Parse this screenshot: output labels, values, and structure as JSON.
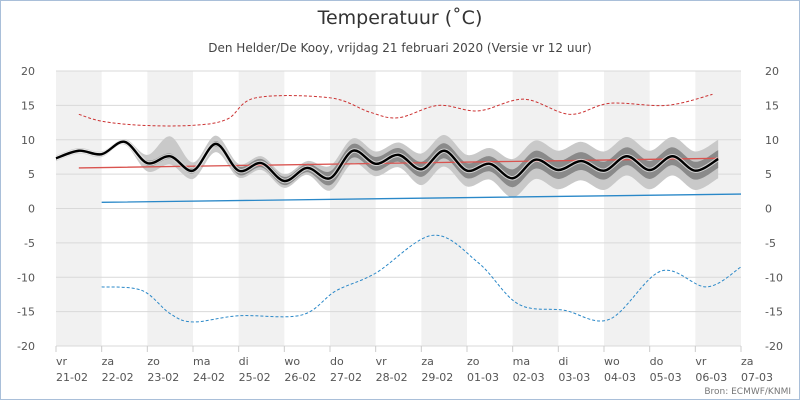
{
  "chart_data": {
    "type": "line",
    "title": "Temperatuur (˚C)",
    "subtitle": "Den Helder/De Kooy, vrijdag 21 februari 2020 (Versie vr 12 uur)",
    "source": "Bron: ECMWF/KNMI",
    "ylim": [
      -20,
      20
    ],
    "yticks": [
      20,
      15,
      10,
      5,
      0,
      -5,
      -10,
      -15,
      -20
    ],
    "xlim": [
      "2020-02-21T00:00",
      "2020-03-07T00:00"
    ],
    "xticks": [
      {
        "day": "vr",
        "date": "21-02"
      },
      {
        "day": "za",
        "date": "22-02"
      },
      {
        "day": "zo",
        "date": "23-02"
      },
      {
        "day": "ma",
        "date": "24-02"
      },
      {
        "day": "di",
        "date": "25-02"
      },
      {
        "day": "wo",
        "date": "26-02"
      },
      {
        "day": "do",
        "date": "27-02"
      },
      {
        "day": "vr",
        "date": "28-02"
      },
      {
        "day": "za",
        "date": "29-02"
      },
      {
        "day": "zo",
        "date": "01-03"
      },
      {
        "day": "ma",
        "date": "02-03"
      },
      {
        "day": "di",
        "date": "03-03"
      },
      {
        "day": "wo",
        "date": "04-03"
      },
      {
        "day": "do",
        "date": "05-03"
      },
      {
        "day": "vr",
        "date": "06-03"
      },
      {
        "day": "za",
        "date": "07-03"
      }
    ],
    "grid": true,
    "colors": {
      "mean": "#000000",
      "inner_band": "#8a8a8a",
      "outer_band": "#c9c9c9",
      "normal_max": "#d9534f",
      "normal_min": "#2a88c8",
      "record_max": "#cc3333",
      "record_min": "#2a88c8",
      "day_shade": "#f1f1f1",
      "gridline": "#d9d9d9"
    },
    "ensemble_columns": [
      "time",
      "p_low",
      "q_low",
      "mean",
      "q_high",
      "p_high"
    ],
    "ensemble": [
      [
        "2020-02-21T00",
        6.9,
        7.1,
        7.3,
        7.5,
        7.7
      ],
      [
        "2020-02-21T12",
        8.0,
        8.2,
        8.4,
        8.6,
        8.8
      ],
      [
        "2020-02-22T00",
        7.5,
        7.7,
        7.9,
        8.1,
        8.3
      ],
      [
        "2020-02-22T12",
        9.3,
        9.5,
        9.7,
        9.9,
        10.1
      ],
      [
        "2020-02-23T00",
        5.4,
        6.2,
        6.6,
        7.0,
        7.8
      ],
      [
        "2020-02-23T12",
        6.4,
        7.2,
        7.6,
        8.0,
        10.5
      ],
      [
        "2020-02-24T00",
        4.3,
        5.1,
        5.5,
        5.9,
        6.7
      ],
      [
        "2020-02-24T12",
        8.2,
        9.0,
        9.4,
        9.8,
        10.6
      ],
      [
        "2020-02-25T00",
        4.5,
        4.9,
        5.5,
        6.1,
        6.5
      ],
      [
        "2020-02-25T12",
        5.6,
        6.0,
        6.6,
        7.2,
        7.6
      ],
      [
        "2020-02-26T00",
        3.0,
        3.4,
        4.0,
        4.6,
        5.0
      ],
      [
        "2020-02-26T12",
        4.9,
        5.3,
        5.9,
        6.5,
        6.9
      ],
      [
        "2020-02-27T00",
        2.6,
        3.4,
        4.4,
        5.4,
        6.2
      ],
      [
        "2020-02-27T12",
        6.6,
        7.4,
        8.4,
        9.4,
        10.2
      ],
      [
        "2020-02-28T00",
        4.7,
        5.5,
        6.5,
        7.5,
        8.3
      ],
      [
        "2020-02-28T12",
        6.0,
        6.8,
        7.8,
        8.8,
        9.6
      ],
      [
        "2020-02-29T00",
        3.4,
        4.6,
        5.7,
        6.8,
        8.0
      ],
      [
        "2020-02-29T12",
        6.1,
        7.3,
        8.4,
        9.5,
        10.7
      ],
      [
        "2020-03-01T00",
        3.2,
        4.4,
        5.5,
        6.6,
        7.8
      ],
      [
        "2020-03-01T12",
        4.2,
        5.4,
        6.5,
        7.6,
        8.8
      ],
      [
        "2020-03-02T00",
        1.6,
        3.1,
        4.4,
        5.7,
        7.2
      ],
      [
        "2020-03-02T12",
        4.3,
        5.8,
        7.1,
        8.4,
        9.9
      ],
      [
        "2020-03-03T00",
        2.8,
        4.3,
        5.6,
        6.9,
        8.4
      ],
      [
        "2020-03-03T12",
        4.1,
        5.6,
        6.9,
        8.2,
        9.7
      ],
      [
        "2020-03-04T00",
        2.7,
        4.2,
        5.5,
        6.8,
        8.3
      ],
      [
        "2020-03-04T12",
        4.8,
        6.3,
        7.6,
        8.9,
        10.4
      ],
      [
        "2020-03-05T00",
        2.8,
        4.3,
        5.6,
        6.9,
        8.4
      ],
      [
        "2020-03-05T12",
        4.8,
        6.3,
        7.6,
        8.9,
        10.4
      ],
      [
        "2020-03-06T00",
        2.7,
        4.2,
        5.5,
        6.8,
        8.3
      ],
      [
        "2020-03-06T12",
        4.4,
        5.9,
        7.2,
        8.5,
        10.0
      ]
    ],
    "series": [
      {
        "key": "normal_max",
        "style": "solid",
        "points": [
          [
            "2020-02-21T12",
            5.9
          ],
          [
            "2020-03-06T12",
            7.3
          ]
        ]
      },
      {
        "key": "normal_min",
        "style": "solid",
        "points": [
          [
            "2020-02-22T00",
            0.9
          ],
          [
            "2020-03-07T00",
            2.1
          ]
        ]
      },
      {
        "key": "record_max",
        "style": "dashed",
        "points": [
          [
            "2020-02-21T12",
            13.7
          ],
          [
            "2020-02-22T00",
            12.7
          ],
          [
            "2020-02-22T21",
            12.1
          ],
          [
            "2020-02-24T00",
            12.1
          ],
          [
            "2020-02-24T18",
            13.0
          ],
          [
            "2020-02-25T09",
            16.1
          ],
          [
            "2020-02-27T00",
            16.1
          ],
          [
            "2020-02-27T21",
            14.0
          ],
          [
            "2020-02-28T12",
            13.2
          ],
          [
            "2020-02-29T09",
            15.0
          ],
          [
            "2020-03-01T06",
            14.2
          ],
          [
            "2020-03-02T06",
            15.9
          ],
          [
            "2020-03-03T06",
            13.7
          ],
          [
            "2020-03-04T03",
            15.3
          ],
          [
            "2020-03-05T09",
            15.0
          ],
          [
            "2020-03-06T09",
            16.6
          ]
        ]
      },
      {
        "key": "record_min",
        "style": "dashed",
        "points": [
          [
            "2020-02-22T00",
            -11.4
          ],
          [
            "2020-02-22T21",
            -11.9
          ],
          [
            "2020-02-23T12",
            -15.3
          ],
          [
            "2020-02-24T00",
            -16.5
          ],
          [
            "2020-02-25T00",
            -15.6
          ],
          [
            "2020-02-26T09",
            -15.5
          ],
          [
            "2020-02-27T03",
            -12.0
          ],
          [
            "2020-02-28T00",
            -9.4
          ],
          [
            "2020-02-29T06",
            -3.9
          ],
          [
            "2020-03-01T06",
            -7.9
          ],
          [
            "2020-03-02T03",
            -13.9
          ],
          [
            "2020-03-03T03",
            -14.8
          ],
          [
            "2020-03-04T03",
            -16.1
          ],
          [
            "2020-03-05T06",
            -9.1
          ],
          [
            "2020-03-06T06",
            -11.4
          ],
          [
            "2020-03-07T00",
            -8.5
          ]
        ]
      }
    ]
  }
}
